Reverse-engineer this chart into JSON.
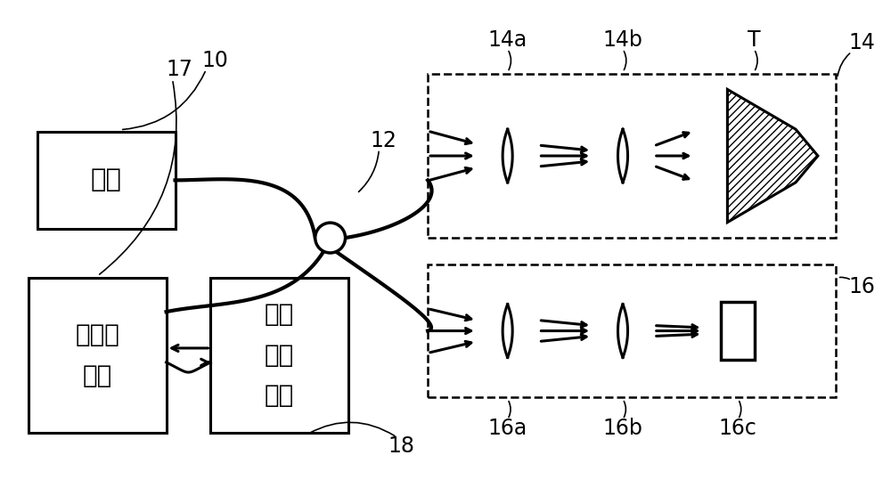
{
  "bg_color": "#ffffff",
  "line_color": "#000000",
  "label_10": "10",
  "label_12": "12",
  "label_14": "14",
  "label_14a": "14a",
  "label_14b": "14b",
  "label_T": "T",
  "label_16": "16",
  "label_16a": "16a",
  "label_16b": "16b",
  "label_16c": "16c",
  "label_17": "17",
  "label_18": "18",
  "text_guangyuan": "光源",
  "text_guangcemokuai": "光感测\n模块",
  "text_shujuchulikuai": "数据\n处理\n模块"
}
